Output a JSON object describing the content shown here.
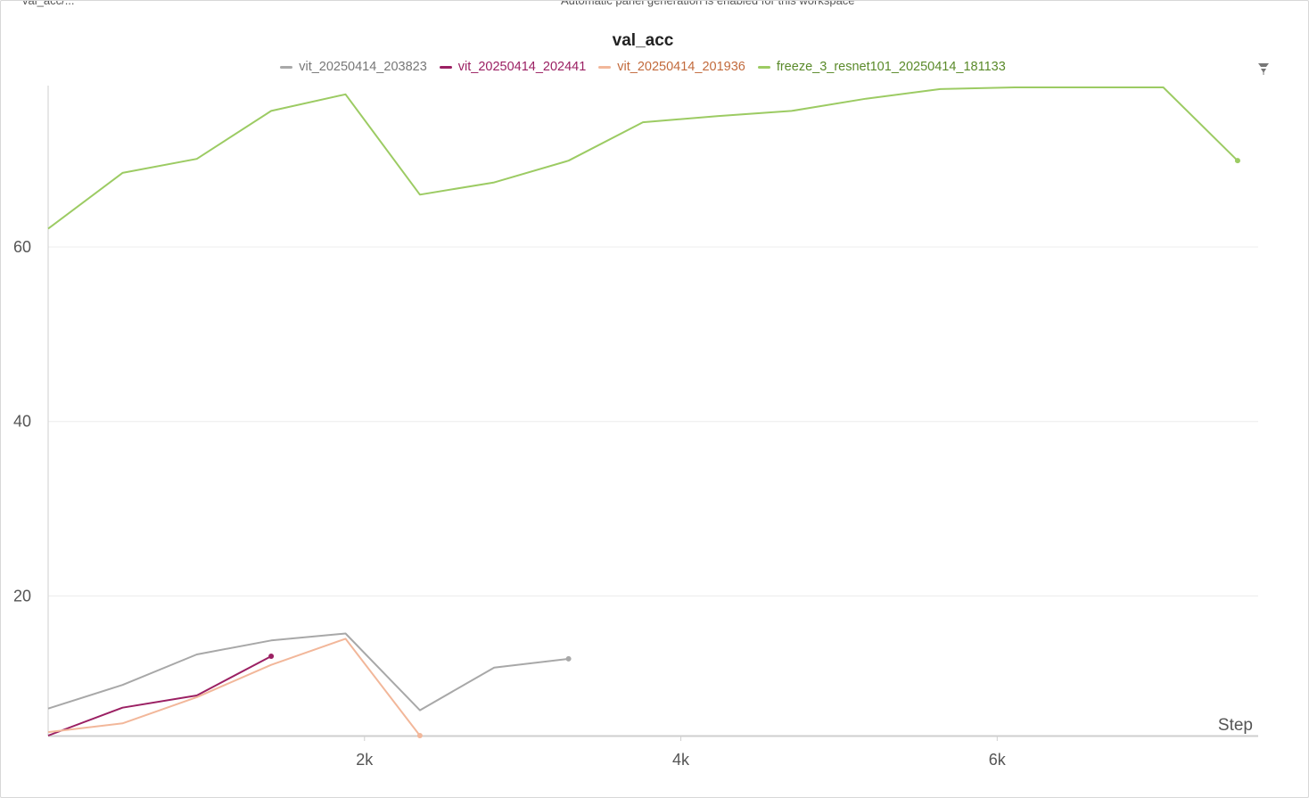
{
  "top_strip": {
    "left_text": "val_acc/...",
    "right_text": "Automatic panel generation is enabled for this workspace"
  },
  "menu_icon": "funnel-icon",
  "chart_data": {
    "type": "line",
    "title": "val_acc",
    "xlabel": "Step",
    "ylabel": "",
    "xlim": [
      0,
      7650
    ],
    "ylim": [
      4,
      78.5
    ],
    "x_ticks": [
      2000,
      4000,
      6000
    ],
    "x_tick_labels": [
      "2k",
      "4k",
      "6k"
    ],
    "y_ticks": [
      20,
      40,
      60
    ],
    "y_tick_labels": [
      "20",
      "40",
      "60"
    ],
    "grid": "horizontal",
    "legend_position": "top-center",
    "series": [
      {
        "name": "vit_20250414_203823",
        "color": "#a8a8a8",
        "text_color": "#777777",
        "x": [
          0,
          470,
          940,
          1410,
          1880,
          2350,
          2820,
          3290
        ],
        "y": [
          7.1,
          9.8,
          13.3,
          14.9,
          15.7,
          6.9,
          11.8,
          12.8
        ]
      },
      {
        "name": "vit_20250414_202441",
        "color": "#9b2063",
        "text_color": "#9b2063",
        "x": [
          0,
          470,
          940,
          1410
        ],
        "y": [
          4.0,
          7.2,
          8.6,
          13.1
        ]
      },
      {
        "name": "vit_20250414_201936",
        "color": "#f2b79a",
        "text_color": "#c26a3c",
        "x": [
          0,
          470,
          940,
          1410,
          1880,
          2350
        ],
        "y": [
          4.4,
          5.4,
          8.4,
          12.1,
          15.1,
          4.0
        ]
      },
      {
        "name": "freeze_3_resnet101_20250414_181133",
        "color": "#9ccb63",
        "text_color": "#5a8a2a",
        "x": [
          0,
          470,
          940,
          1410,
          1880,
          2350,
          2820,
          3290,
          3760,
          4230,
          4700,
          5170,
          5640,
          6110,
          6580,
          7050,
          7520
        ],
        "y": [
          62.1,
          68.5,
          70.1,
          75.6,
          77.5,
          66.0,
          67.4,
          69.9,
          74.3,
          75.0,
          75.6,
          77.0,
          78.1,
          78.3,
          78.3,
          78.3,
          69.9
        ]
      }
    ]
  }
}
